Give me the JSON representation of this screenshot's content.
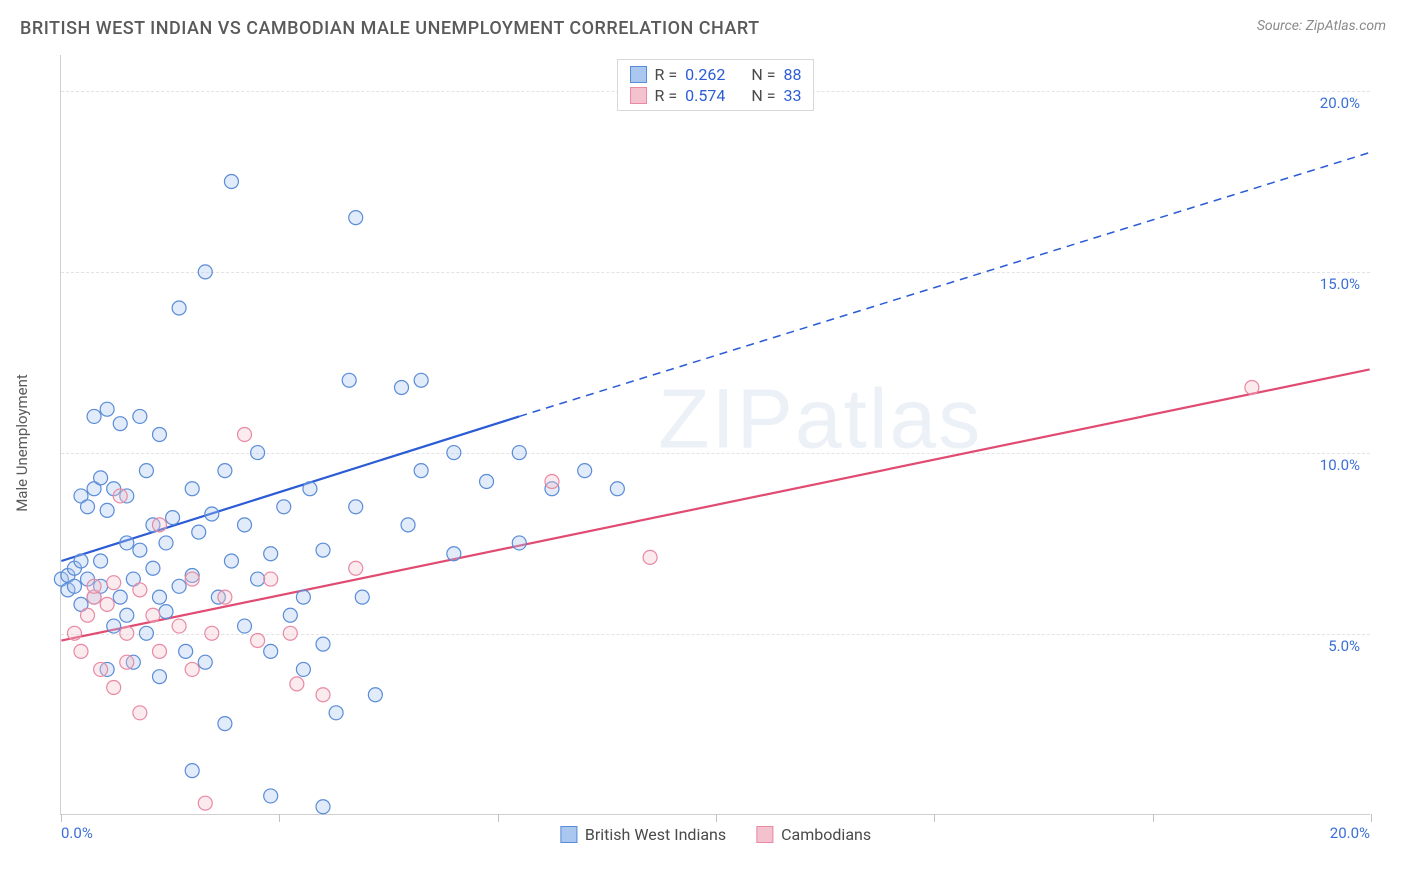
{
  "header": {
    "title": "BRITISH WEST INDIAN VS CAMBODIAN MALE UNEMPLOYMENT CORRELATION CHART",
    "source": "Source: ZipAtlas.com"
  },
  "watermark": "ZIPatlas",
  "chart": {
    "type": "scatter",
    "y_axis_label": "Male Unemployment",
    "xlim": [
      0,
      20
    ],
    "ylim": [
      0,
      21
    ],
    "x_tick_labels": {
      "min": "0.0%",
      "max": "20.0%"
    },
    "x_minor_ticks": [
      0,
      3.33,
      6.67,
      10,
      13.33,
      16.67,
      20
    ],
    "y_grid": [
      {
        "value": 5,
        "label": "5.0%"
      },
      {
        "value": 10,
        "label": "10.0%"
      },
      {
        "value": 15,
        "label": "15.0%"
      },
      {
        "value": 20,
        "label": "20.0%"
      }
    ],
    "background_color": "#ffffff",
    "grid_color": "#e3e3e3",
    "axis_color": "#d0d0d0",
    "marker_radius": 7,
    "marker_stroke_width": 1.2,
    "marker_fill_opacity": 0.35,
    "series": [
      {
        "key": "bwi",
        "label": "British West Indians",
        "color_fill": "#a9c7ef",
        "color_stroke": "#5a8cd8",
        "stats": {
          "R": "0.262",
          "N": "88"
        },
        "trend": {
          "x1": 0,
          "y1": 7.0,
          "x2_solid": 7.0,
          "y2_solid": 11.0,
          "x2_dash": 20,
          "y2_dash": 18.3,
          "color": "#2b5cd6",
          "width": 2.2
        },
        "points": [
          [
            0.0,
            6.5
          ],
          [
            0.1,
            6.6
          ],
          [
            0.1,
            6.2
          ],
          [
            0.2,
            6.8
          ],
          [
            0.2,
            6.3
          ],
          [
            0.3,
            7.0
          ],
          [
            0.3,
            5.8
          ],
          [
            0.3,
            8.8
          ],
          [
            0.4,
            6.5
          ],
          [
            0.4,
            8.5
          ],
          [
            0.5,
            9.0
          ],
          [
            0.5,
            11.0
          ],
          [
            0.5,
            6.0
          ],
          [
            0.6,
            7.0
          ],
          [
            0.6,
            9.3
          ],
          [
            0.6,
            6.3
          ],
          [
            0.7,
            8.4
          ],
          [
            0.7,
            11.2
          ],
          [
            0.7,
            4.0
          ],
          [
            0.8,
            5.2
          ],
          [
            0.8,
            9.0
          ],
          [
            0.9,
            6.0
          ],
          [
            0.9,
            10.8
          ],
          [
            1.0,
            7.5
          ],
          [
            1.0,
            5.5
          ],
          [
            1.0,
            8.8
          ],
          [
            1.1,
            6.5
          ],
          [
            1.1,
            4.2
          ],
          [
            1.2,
            11.0
          ],
          [
            1.2,
            7.3
          ],
          [
            1.3,
            9.5
          ],
          [
            1.3,
            5.0
          ],
          [
            1.4,
            6.8
          ],
          [
            1.4,
            8.0
          ],
          [
            1.5,
            6.0
          ],
          [
            1.5,
            10.5
          ],
          [
            1.5,
            3.8
          ],
          [
            1.6,
            7.5
          ],
          [
            1.6,
            5.6
          ],
          [
            1.7,
            8.2
          ],
          [
            1.8,
            6.3
          ],
          [
            1.8,
            14.0
          ],
          [
            1.9,
            4.5
          ],
          [
            2.0,
            9.0
          ],
          [
            2.0,
            6.6
          ],
          [
            2.0,
            1.2
          ],
          [
            2.1,
            7.8
          ],
          [
            2.2,
            15.0
          ],
          [
            2.2,
            4.2
          ],
          [
            2.3,
            8.3
          ],
          [
            2.4,
            6.0
          ],
          [
            2.5,
            9.5
          ],
          [
            2.5,
            2.5
          ],
          [
            2.6,
            7.0
          ],
          [
            2.6,
            17.5
          ],
          [
            2.8,
            5.2
          ],
          [
            2.8,
            8.0
          ],
          [
            3.0,
            6.5
          ],
          [
            3.0,
            10.0
          ],
          [
            3.2,
            7.2
          ],
          [
            3.2,
            4.5
          ],
          [
            3.4,
            8.5
          ],
          [
            3.5,
            5.5
          ],
          [
            3.7,
            6.0
          ],
          [
            3.7,
            4.0
          ],
          [
            3.8,
            9.0
          ],
          [
            4.0,
            7.3
          ],
          [
            4.0,
            4.7
          ],
          [
            4.2,
            2.8
          ],
          [
            4.4,
            12.0
          ],
          [
            4.5,
            8.5
          ],
          [
            4.5,
            16.5
          ],
          [
            4.6,
            6.0
          ],
          [
            4.8,
            3.3
          ],
          [
            5.2,
            11.8
          ],
          [
            5.3,
            8.0
          ],
          [
            5.5,
            9.5
          ],
          [
            5.5,
            12.0
          ],
          [
            6.0,
            7.2
          ],
          [
            6.0,
            10.0
          ],
          [
            6.5,
            9.2
          ],
          [
            7.0,
            7.5
          ],
          [
            7.0,
            10.0
          ],
          [
            7.5,
            9.0
          ],
          [
            8.0,
            9.5
          ],
          [
            8.5,
            9.0
          ],
          [
            4.0,
            0.2
          ],
          [
            3.2,
            0.5
          ]
        ]
      },
      {
        "key": "cam",
        "label": "Cambodians",
        "color_fill": "#f4c2cf",
        "color_stroke": "#e88aa3",
        "stats": {
          "R": "0.574",
          "N": "33"
        },
        "trend": {
          "x1": 0,
          "y1": 4.8,
          "x2_solid": 20,
          "y2_solid": 12.3,
          "x2_dash": 20,
          "y2_dash": 12.3,
          "color": "#e14b72",
          "width": 2.2
        },
        "points": [
          [
            0.2,
            5.0
          ],
          [
            0.3,
            4.5
          ],
          [
            0.4,
            5.5
          ],
          [
            0.5,
            6.0
          ],
          [
            0.5,
            6.3
          ],
          [
            0.6,
            4.0
          ],
          [
            0.7,
            5.8
          ],
          [
            0.8,
            6.4
          ],
          [
            0.8,
            3.5
          ],
          [
            0.9,
            8.8
          ],
          [
            1.0,
            5.0
          ],
          [
            1.0,
            4.2
          ],
          [
            1.2,
            6.2
          ],
          [
            1.2,
            2.8
          ],
          [
            1.4,
            5.5
          ],
          [
            1.5,
            4.5
          ],
          [
            1.5,
            8.0
          ],
          [
            1.8,
            5.2
          ],
          [
            2.0,
            6.5
          ],
          [
            2.0,
            4.0
          ],
          [
            2.3,
            5.0
          ],
          [
            2.5,
            6.0
          ],
          [
            2.8,
            10.5
          ],
          [
            3.0,
            4.8
          ],
          [
            3.2,
            6.5
          ],
          [
            3.5,
            5.0
          ],
          [
            3.6,
            3.6
          ],
          [
            4.0,
            3.3
          ],
          [
            4.5,
            6.8
          ],
          [
            7.5,
            9.2
          ],
          [
            9.0,
            7.1
          ],
          [
            18.2,
            11.8
          ],
          [
            2.2,
            0.3
          ]
        ]
      }
    ],
    "legend_top": {
      "r_label": "R =",
      "n_label": "N ="
    }
  }
}
